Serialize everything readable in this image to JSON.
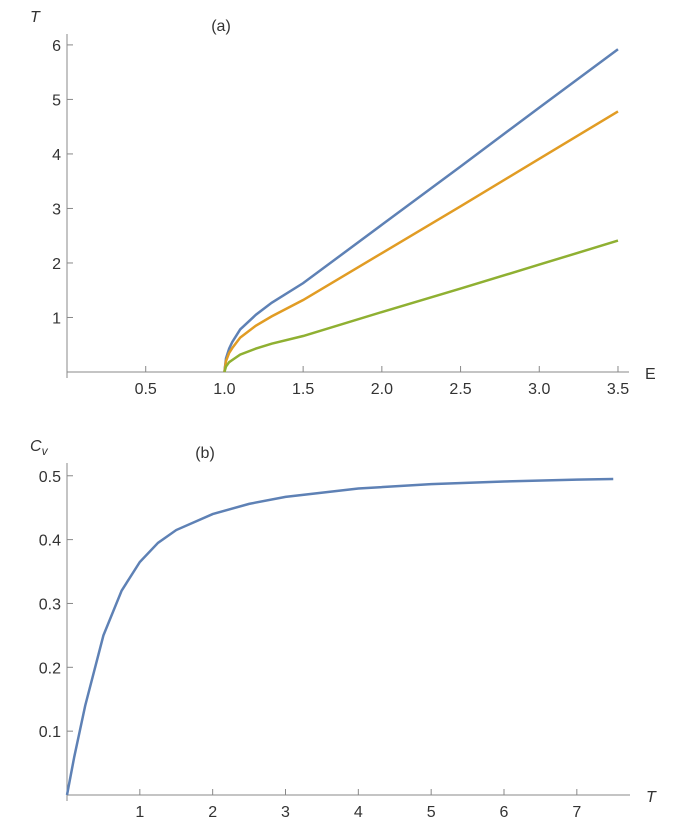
{
  "chart_data": [
    {
      "type": "line",
      "annotation": "(a)",
      "x_label": "E",
      "y_label": "T",
      "x": [
        1.0,
        1.01,
        1.03,
        1.05,
        1.1,
        1.2,
        1.3,
        1.5,
        2.0,
        2.5,
        3.0,
        3.5
      ],
      "series": [
        {
          "color": "#5e81b5",
          "values": [
            0,
            0.25,
            0.43,
            0.55,
            0.78,
            1.05,
            1.27,
            1.63,
            2.7,
            3.77,
            4.85,
            5.92
          ]
        },
        {
          "color": "#e19c24",
          "values": [
            0,
            0.2,
            0.35,
            0.44,
            0.63,
            0.85,
            1.02,
            1.32,
            2.18,
            3.04,
            3.91,
            4.78
          ]
        },
        {
          "color": "#8fb032",
          "values": [
            0,
            0.1,
            0.18,
            0.22,
            0.32,
            0.43,
            0.52,
            0.66,
            1.1,
            1.53,
            1.97,
            2.41
          ]
        }
      ],
      "xlim": [
        0,
        3.57
      ],
      "ylim": [
        0,
        6.2
      ],
      "xticks": [
        0.5,
        {
          "value": 1,
          "label": "1.0"
        },
        1.5,
        {
          "value": 2,
          "label": "2.0"
        },
        2.5,
        {
          "value": 3,
          "label": "3.0"
        },
        3.5
      ],
      "yticks": [
        1,
        2,
        3,
        4,
        5,
        6
      ]
    },
    {
      "type": "line",
      "annotation": "(b)",
      "x_label": "T",
      "y_label": "C",
      "y_label_subscript": "v",
      "x": [
        0,
        0.1,
        0.25,
        0.5,
        0.75,
        1,
        1.25,
        1.5,
        2,
        2.5,
        3,
        4,
        5,
        6,
        7,
        7.5
      ],
      "series": [
        {
          "color": "#5e81b5",
          "values": [
            0,
            0.06,
            0.14,
            0.25,
            0.32,
            0.365,
            0.395,
            0.415,
            0.44,
            0.456,
            0.467,
            0.48,
            0.487,
            0.491,
            0.494,
            0.495
          ]
        }
      ],
      "xlim": [
        0,
        7.73
      ],
      "ylim": [
        0,
        0.52
      ],
      "xticks": [
        1,
        2,
        3,
        4,
        5,
        6,
        7
      ],
      "yticks": [
        0.1,
        0.2,
        0.3,
        0.4,
        0.5
      ]
    }
  ]
}
